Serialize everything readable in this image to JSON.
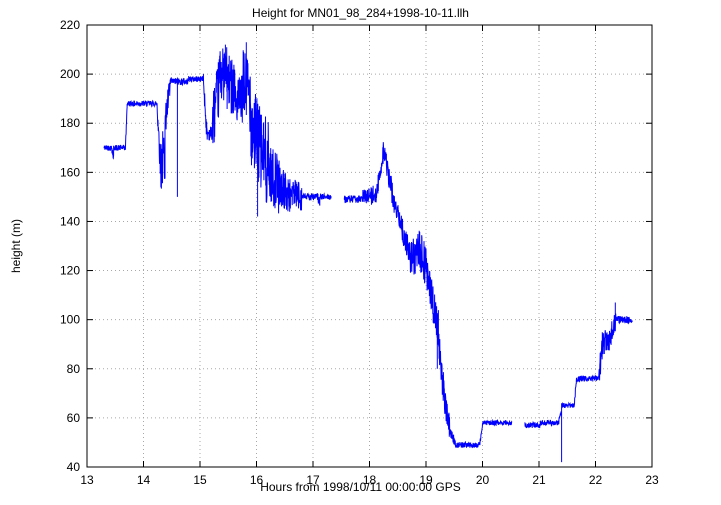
{
  "chart_data": {
    "type": "line",
    "title": "Height for MN01_98_284+1998-10-11.llh",
    "xlabel": "Hours from 1998/10/11 00:00:00 GPS",
    "ylabel": "height (m)",
    "xlim": [
      13,
      23
    ],
    "ylim": [
      40,
      220
    ],
    "xticks": [
      13,
      14,
      15,
      16,
      17,
      18,
      19,
      20,
      21,
      22,
      23
    ],
    "yticks": [
      40,
      60,
      80,
      100,
      120,
      140,
      160,
      180,
      200,
      220
    ],
    "grid": "dotted",
    "line_color": "#0000ff",
    "grid_color": "#a8a8a8",
    "series": [
      {
        "name": "height",
        "segments": [
          {
            "x0": 13.3,
            "x1": 13.44,
            "y0": 170,
            "y1": 170,
            "n": 1.2
          },
          {
            "x0": 13.44,
            "x1": 13.47,
            "y0": 170,
            "y1": 166,
            "n": 2
          },
          {
            "x0": 13.47,
            "x1": 13.68,
            "y0": 170,
            "y1": 170,
            "n": 1.2
          },
          {
            "x0": 13.68,
            "x1": 13.71,
            "y0": 170,
            "y1": 187,
            "n": 1
          },
          {
            "x0": 13.71,
            "x1": 14.24,
            "y0": 188,
            "y1": 188,
            "n": 1.2
          },
          {
            "x0": 14.24,
            "x1": 14.3,
            "y0": 188,
            "y1": 163,
            "n": 6
          },
          {
            "x0": 14.3,
            "x1": 14.38,
            "y0": 163,
            "y1": 168,
            "n": 12
          },
          {
            "x0": 14.38,
            "x1": 14.48,
            "y0": 180,
            "y1": 196,
            "n": 6
          },
          {
            "x0": 14.48,
            "x1": 14.78,
            "y0": 197,
            "y1": 197,
            "n": 1.5
          },
          {
            "x0": 14.78,
            "x1": 15.06,
            "y0": 198,
            "y1": 198,
            "n": 1.2
          },
          {
            "x0": 15.06,
            "x1": 15.12,
            "y0": 198,
            "y1": 176,
            "n": 4
          },
          {
            "x0": 15.12,
            "x1": 15.22,
            "y0": 176,
            "y1": 176,
            "n": 3
          },
          {
            "x0": 15.22,
            "x1": 15.34,
            "y0": 180,
            "y1": 195,
            "n": 12
          },
          {
            "x0": 15.34,
            "x1": 15.48,
            "y0": 200,
            "y1": 200,
            "n": 11
          },
          {
            "x0": 15.48,
            "x1": 15.62,
            "y0": 196,
            "y1": 196,
            "n": 12
          },
          {
            "x0": 15.62,
            "x1": 15.76,
            "y0": 188,
            "y1": 190,
            "n": 10
          },
          {
            "x0": 15.76,
            "x1": 15.9,
            "y0": 195,
            "y1": 192,
            "n": 16
          },
          {
            "x0": 15.9,
            "x1": 16.05,
            "y0": 180,
            "y1": 172,
            "n": 18
          },
          {
            "x0": 16.05,
            "x1": 16.22,
            "y0": 170,
            "y1": 162,
            "n": 18
          },
          {
            "x0": 16.22,
            "x1": 16.4,
            "y0": 160,
            "y1": 155,
            "n": 12
          },
          {
            "x0": 16.4,
            "x1": 16.6,
            "y0": 155,
            "y1": 150,
            "n": 8
          },
          {
            "x0": 16.6,
            "x1": 16.8,
            "y0": 152,
            "y1": 150,
            "n": 6
          },
          {
            "x0": 16.8,
            "x1": 17.08,
            "y0": 150,
            "y1": 150,
            "n": 1.5
          },
          {
            "x0": 17.08,
            "x1": 17.12,
            "y0": 150,
            "y1": 147,
            "n": 2
          },
          {
            "x0": 17.12,
            "x1": 17.32,
            "y0": 150,
            "y1": 150,
            "n": 1.2
          },
          {
            "x0": 17.55,
            "x1": 17.88,
            "y0": 149,
            "y1": 149,
            "n": 1.5
          },
          {
            "x0": 17.88,
            "x1": 18.02,
            "y0": 150,
            "y1": 151,
            "n": 3
          },
          {
            "x0": 18.02,
            "x1": 18.14,
            "y0": 150,
            "y1": 152,
            "n": 4
          },
          {
            "x0": 18.14,
            "x1": 18.24,
            "y0": 153,
            "y1": 168,
            "n": 5
          },
          {
            "x0": 18.24,
            "x1": 18.3,
            "y0": 170,
            "y1": 165,
            "n": 4
          },
          {
            "x0": 18.3,
            "x1": 18.42,
            "y0": 162,
            "y1": 150,
            "n": 5
          },
          {
            "x0": 18.42,
            "x1": 18.56,
            "y0": 148,
            "y1": 140,
            "n": 4
          },
          {
            "x0": 18.56,
            "x1": 18.72,
            "y0": 138,
            "y1": 126,
            "n": 5
          },
          {
            "x0": 18.72,
            "x1": 18.88,
            "y0": 124,
            "y1": 128,
            "n": 8
          },
          {
            "x0": 18.88,
            "x1": 19.02,
            "y0": 128,
            "y1": 120,
            "n": 9
          },
          {
            "x0": 19.02,
            "x1": 19.12,
            "y0": 118,
            "y1": 108,
            "n": 7
          },
          {
            "x0": 19.12,
            "x1": 19.22,
            "y0": 106,
            "y1": 96,
            "n": 8
          },
          {
            "x0": 19.22,
            "x1": 19.32,
            "y0": 92,
            "y1": 70,
            "n": 8
          },
          {
            "x0": 19.32,
            "x1": 19.42,
            "y0": 68,
            "y1": 56,
            "n": 5
          },
          {
            "x0": 19.42,
            "x1": 19.52,
            "y0": 54,
            "y1": 50,
            "n": 2
          },
          {
            "x0": 19.52,
            "x1": 19.95,
            "y0": 49,
            "y1": 49,
            "n": 1.2
          },
          {
            "x0": 19.95,
            "x1": 20.0,
            "y0": 49,
            "y1": 57,
            "n": 1
          },
          {
            "x0": 20.0,
            "x1": 20.52,
            "y0": 58,
            "y1": 58,
            "n": 1
          },
          {
            "x0": 20.75,
            "x1": 21.02,
            "y0": 57,
            "y1": 57,
            "n": 1.2
          },
          {
            "x0": 21.02,
            "x1": 21.35,
            "y0": 58,
            "y1": 58,
            "n": 1
          },
          {
            "x0": 21.35,
            "x1": 21.4,
            "y0": 58,
            "y1": 64,
            "n": 1.5
          },
          {
            "x0": 21.4,
            "x1": 21.62,
            "y0": 65,
            "y1": 65,
            "n": 1
          },
          {
            "x0": 21.62,
            "x1": 21.66,
            "y0": 65,
            "y1": 75,
            "n": 1.5
          },
          {
            "x0": 21.66,
            "x1": 22.06,
            "y0": 76,
            "y1": 76,
            "n": 1.2
          },
          {
            "x0": 22.06,
            "x1": 22.12,
            "y0": 76,
            "y1": 90,
            "n": 6
          },
          {
            "x0": 22.12,
            "x1": 22.28,
            "y0": 90,
            "y1": 93,
            "n": 5
          },
          {
            "x0": 22.28,
            "x1": 22.36,
            "y0": 95,
            "y1": 100,
            "n": 4
          },
          {
            "x0": 22.36,
            "x1": 22.65,
            "y0": 100,
            "y1": 100,
            "n": 1.5
          }
        ],
        "spikes": [
          {
            "x": 14.6,
            "y": 150
          },
          {
            "x": 15.45,
            "y": 212
          },
          {
            "x": 15.82,
            "y": 213
          },
          {
            "x": 16.02,
            "y": 142
          },
          {
            "x": 19.2,
            "y": 80
          },
          {
            "x": 21.4,
            "y": 42
          },
          {
            "x": 22.35,
            "y": 107
          }
        ]
      }
    ]
  }
}
